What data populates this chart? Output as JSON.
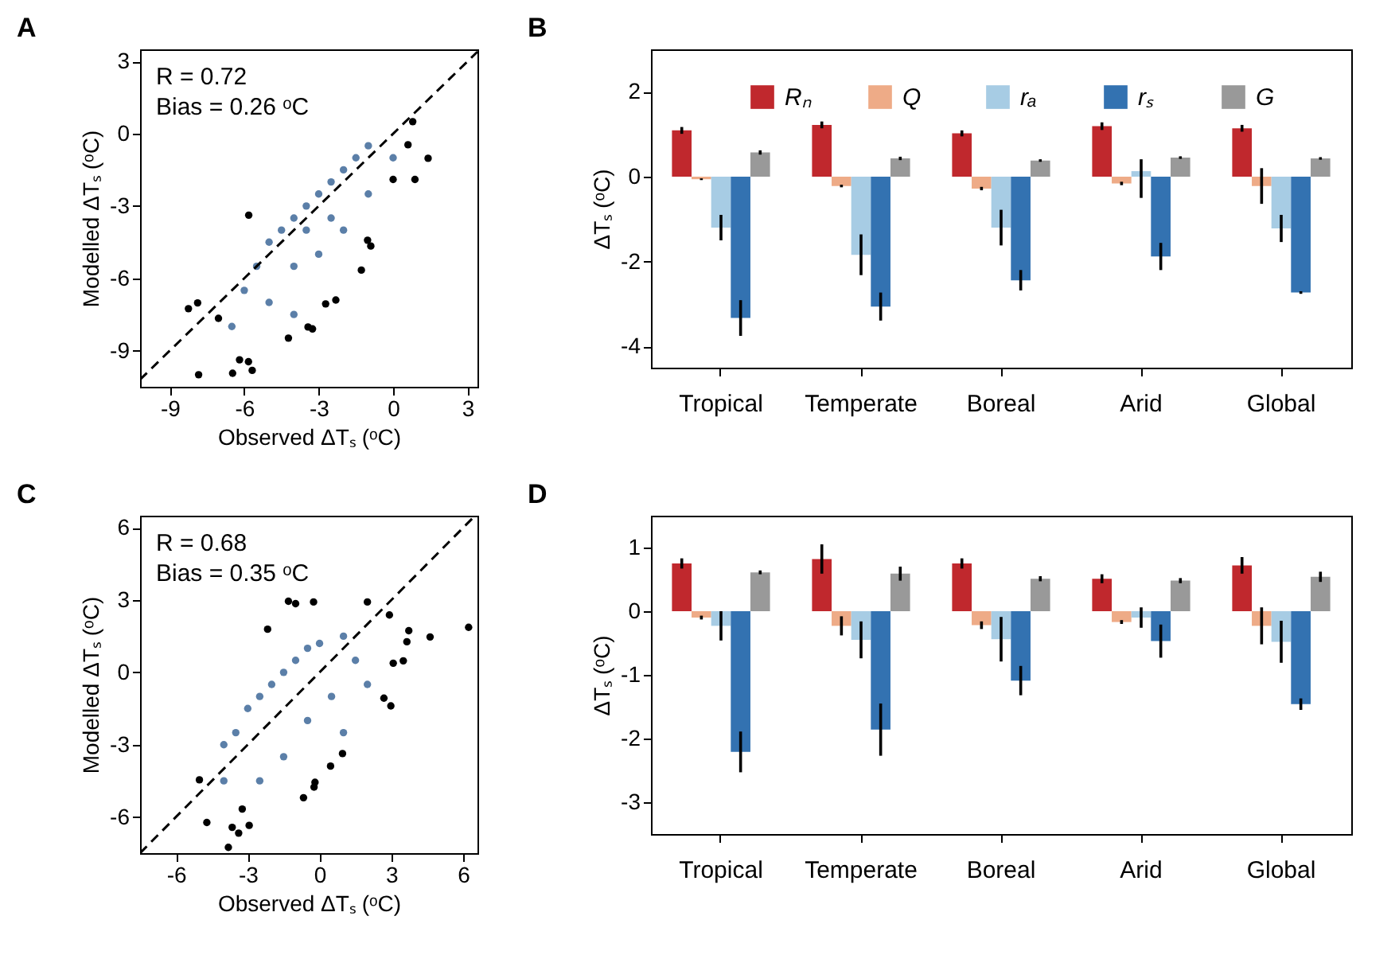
{
  "chart_data": [
    {
      "type": "scatter",
      "title": "A",
      "xlabel": "Observed ΔTₛ (ᵒC)",
      "ylabel": "Modelled ΔTₛ (ᵒC)",
      "annotations": [
        "R = 0.72",
        "Bias = 0.26 ᵒC"
      ],
      "xlim": [
        -10.2,
        3.4
      ],
      "ylim": [
        -10.5,
        3.5
      ],
      "xticks": [
        -9,
        -6,
        -3,
        0,
        3
      ],
      "yticks": [
        3,
        0,
        -3,
        -6,
        -9
      ],
      "grid": false,
      "marker": "circle",
      "series": [
        {
          "color": "#5b7fa8",
          "x": [
            -5.5,
            -5,
            -4.5,
            -4,
            -3.5,
            -3,
            -2.5,
            -2,
            -1.5,
            -1,
            -4,
            -3,
            -2,
            -5,
            -4,
            -6,
            -1,
            -3.5,
            -2.5,
            0,
            -6.5
          ],
          "values": [
            -5.5,
            -4.5,
            -4,
            -3.5,
            -3,
            -2.5,
            -2,
            -1.5,
            -1,
            -0.5,
            -5.5,
            -5,
            -4,
            -7,
            -7.5,
            -6.5,
            -2.5,
            -4,
            -3.5,
            -1,
            -8
          ]
        },
        {
          "color": "#000000",
          "x": [
            -8.25,
            -7.88,
            -7.04,
            -7.84,
            -6.47,
            -6.19,
            -5.83,
            -5.68,
            -5.82,
            -4.22,
            -3.43,
            -3.25,
            -2.31,
            -2.72,
            -1.28,
            -0.9,
            -1.03,
            0,
            0.88,
            1.41,
            0.6,
            0.79
          ],
          "values": [
            -7.26,
            -7.02,
            -7.66,
            -10.0,
            -9.94,
            -9.38,
            -9.46,
            -9.82,
            -3.38,
            -8.48,
            -8.02,
            -8.1,
            -6.9,
            -7.06,
            -5.66,
            -4.66,
            -4.42,
            -1.9,
            -1.9,
            -1.02,
            -0.46,
            0.5
          ]
        },
        {
          "type": "line",
          "color": "#000000",
          "line_style": "dashed",
          "marker": "none",
          "x": [
            -10.2,
            3.4
          ],
          "values": [
            -10.2,
            3.4
          ]
        }
      ]
    },
    {
      "type": "bar",
      "title": "B",
      "ylabel": "ΔTₛ (ᵒC)",
      "categories": [
        "Tropical",
        "Temperate",
        "Boreal",
        "Arid",
        "Global"
      ],
      "ylim": [
        -4.5,
        3
      ],
      "yticks": [
        2,
        0,
        -2,
        -4
      ],
      "grid": false,
      "legend": "top",
      "series": [
        {
          "name": "Rₙ",
          "color": "#c0282d",
          "values": [
            1.09,
            1.22,
            1.02,
            1.19,
            1.14
          ],
          "errors": [
            0.08,
            0.08,
            0.07,
            0.09,
            0.08
          ]
        },
        {
          "name": "Q",
          "color": "#eeab87",
          "values": [
            -0.06,
            -0.22,
            -0.28,
            -0.16,
            -0.22
          ],
          "errors": [
            0.02,
            0.03,
            0.04,
            0.04,
            [
              -0.64,
              0.2
            ]
          ]
        },
        {
          "name": "rₐ",
          "color": "#a7cce4",
          "values": [
            -1.2,
            -1.84,
            -1.2,
            0.13,
            -1.22
          ],
          "errors": [
            0.3,
            0.48,
            0.42,
            [
              -0.5,
              0.41
            ],
            0.32
          ]
        },
        {
          "name": "rₛ",
          "color": "#3372b1",
          "values": [
            -3.33,
            -3.06,
            -2.44,
            -1.88,
            -2.73
          ],
          "errors": [
            0.42,
            0.33,
            0.24,
            0.32,
            0.03
          ]
        },
        {
          "name": "G",
          "color": "#999999",
          "values": [
            0.57,
            0.43,
            0.38,
            0.45,
            0.43
          ],
          "errors": [
            0.05,
            0.04,
            0.03,
            0.03,
            0.03
          ]
        }
      ]
    },
    {
      "type": "scatter",
      "title": "C",
      "xlabel": "Observed ΔTₛ (ᵒC)",
      "ylabel": "Modelled ΔTₛ (ᵒC)",
      "annotations": [
        "R = 0.68",
        "Bias = 0.35 ᵒC"
      ],
      "xlim": [
        -7.5,
        6.6
      ],
      "ylim": [
        -7.5,
        6.5
      ],
      "xticks": [
        -6,
        -3,
        0,
        3,
        6
      ],
      "yticks": [
        6,
        3,
        0,
        -3,
        -6
      ],
      "grid": false,
      "marker": "circle",
      "series": [
        {
          "color": "#5b7fa8",
          "x": [
            -4,
            -3.5,
            -3,
            -2.5,
            -2,
            -1.5,
            -1,
            -0.5,
            0,
            1,
            1.5,
            0.5,
            -0.5,
            -1.5,
            -2.5,
            2,
            1,
            -4
          ],
          "values": [
            -4.5,
            -2.5,
            -1.5,
            -1,
            -0.5,
            0,
            0.5,
            1,
            1.2,
            1.5,
            0.5,
            -1,
            -2,
            -3.5,
            -4.5,
            -0.5,
            -2.5,
            -3
          ]
        },
        {
          "color": "#000000",
          "x": [
            -5.02,
            -4.71,
            -3.65,
            -3.38,
            -2.94,
            -3.81,
            -2.17,
            -1.3,
            -1.0,
            -0.25,
            2.0,
            2.92,
            3.73,
            3.65,
            4.62,
            6.23,
            3.5,
            3.08,
            2.69,
            2.98,
            0.96,
            0.46,
            -0.67,
            -0.19,
            -0.23,
            -3.23
          ],
          "values": [
            -4.46,
            -6.23,
            -6.43,
            -6.67,
            -6.35,
            -7.26,
            1.79,
            2.95,
            2.85,
            2.92,
            2.92,
            2.38,
            1.73,
            1.27,
            1.47,
            1.87,
            0.48,
            0.38,
            -1.07,
            -1.39,
            -3.37,
            -3.89,
            -5.2,
            -4.56,
            -4.76,
            -5.67
          ]
        },
        {
          "type": "line",
          "color": "#000000",
          "line_style": "dashed",
          "marker": "none",
          "x": [
            -7.5,
            6.5
          ],
          "values": [
            -7.5,
            6.5
          ]
        }
      ]
    },
    {
      "type": "bar",
      "title": "D",
      "ylabel": "ΔTₛ (ᵒC)",
      "categories": [
        "Tropical",
        "Temperate",
        "Boreal",
        "Arid",
        "Global"
      ],
      "ylim": [
        -3.5,
        1.5
      ],
      "yticks": [
        1,
        0,
        -1,
        -2,
        -3
      ],
      "grid": false,
      "legend": false,
      "series": [
        {
          "color": "#c0282d",
          "values": [
            0.75,
            0.82,
            0.75,
            0.51,
            0.72
          ],
          "errors": [
            0.08,
            0.23,
            0.08,
            0.07,
            0.13
          ]
        },
        {
          "color": "#eeab87",
          "values": [
            -0.1,
            -0.23,
            -0.22,
            -0.17,
            -0.23
          ],
          "errors": [
            0.03,
            0.15,
            0.06,
            0.03,
            0.29
          ]
        },
        {
          "color": "#a7cce4",
          "values": [
            -0.23,
            -0.45,
            -0.44,
            -0.1,
            -0.48
          ],
          "errors": [
            0.23,
            0.29,
            0.35,
            0.16,
            0.33
          ]
        },
        {
          "color": "#3372b1",
          "values": [
            -2.21,
            -1.86,
            -1.09,
            -0.47,
            -1.46
          ],
          "errors": [
            0.32,
            0.41,
            0.23,
            0.26,
            0.09
          ]
        },
        {
          "color": "#999999",
          "values": [
            0.61,
            0.59,
            0.51,
            0.48,
            0.54
          ],
          "errors": [
            0.03,
            0.11,
            0.04,
            0.04,
            0.08
          ]
        }
      ]
    }
  ]
}
